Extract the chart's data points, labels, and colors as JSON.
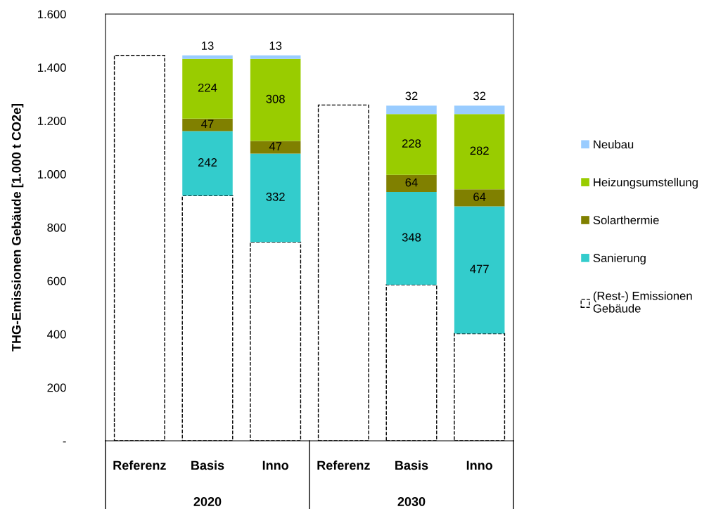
{
  "chart_data": {
    "type": "bar",
    "stacked": true,
    "ylabel": "THG-Emissionen Gebäude [1.000 t CO2e]",
    "categories": [
      "Referenz",
      "Basis",
      "Inno",
      "Referenz",
      "Basis",
      "Inno"
    ],
    "annotations": [
      "2020",
      "2030"
    ],
    "ylim": [
      0,
      1600
    ],
    "yticks": [
      {
        "value": 0,
        "label": "-"
      },
      200,
      400,
      600,
      800,
      {
        "value": 1000,
        "label": "1.000"
      },
      {
        "value": 1200,
        "label": "1.200"
      },
      {
        "value": 1400,
        "label": "1.400"
      },
      {
        "value": 1600,
        "label": "1.600"
      }
    ],
    "legend": "right",
    "grid": false,
    "series": [
      {
        "name": "(Rest-) Emissionen Gebäude",
        "color": "#ffffff",
        "line_style": "dashed",
        "values": [
          1445,
          919,
          745,
          1259,
          585,
          402
        ]
      },
      {
        "name": "Sanierung",
        "color": "#33cccc",
        "values": [
          null,
          242,
          332,
          null,
          348,
          477
        ],
        "value_labels": [
          null,
          "242",
          "332",
          null,
          "348",
          "477"
        ]
      },
      {
        "name": "Solarthermie",
        "color": "#808000",
        "values": [
          null,
          47,
          47,
          null,
          64,
          64
        ],
        "value_labels": [
          null,
          "47",
          "47",
          null,
          "64",
          "64"
        ]
      },
      {
        "name": "Heizungsumstellung",
        "color": "#99cc00",
        "values": [
          null,
          224,
          308,
          null,
          228,
          282
        ],
        "value_labels": [
          null,
          "224",
          "308",
          null,
          "228",
          "282"
        ]
      },
      {
        "name": "Neubau",
        "color": "#99ccff",
        "values": [
          null,
          13,
          13,
          null,
          32,
          32
        ],
        "value_labels": [
          null,
          "13",
          "13",
          null,
          "32",
          "32"
        ]
      }
    ]
  }
}
